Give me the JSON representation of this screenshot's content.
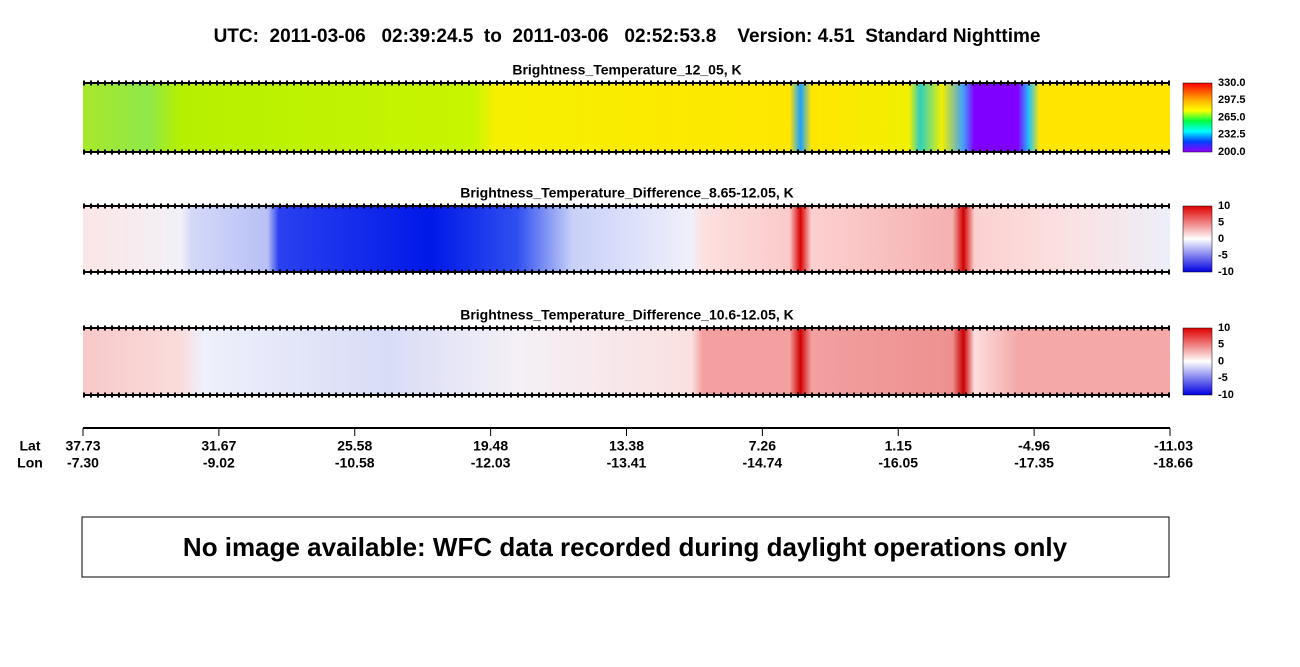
{
  "header": {
    "title": "UTC:  2011-03-06   02:39:24.5  to  2011-03-06   02:52:53.8    Version: 4.51  Standard Nighttime"
  },
  "panels": [
    {
      "title": "Brightness_Temperature_12_05, K",
      "colorbar_labels": [
        "330.0",
        "297.5",
        "265.0",
        "232.5",
        "200.0"
      ]
    },
    {
      "title": "Brightness_Temperature_Difference_8.65-12.05, K",
      "colorbar_labels": [
        "10",
        "5",
        "0",
        "-5",
        "-10"
      ]
    },
    {
      "title": "Brightness_Temperature_Difference_10.6-12.05, K",
      "colorbar_labels": [
        "10",
        "5",
        "0",
        "-5",
        "-10"
      ]
    }
  ],
  "axis": {
    "lat_label": "Lat",
    "lon_label": "Lon",
    "lat": [
      "37.73",
      "31.67",
      "25.58",
      "19.48",
      "13.38",
      "7.26",
      "1.15",
      "-4.96",
      "-11.03"
    ],
    "lon": [
      "-7.30",
      "-9.02",
      "-10.58",
      "-12.03",
      "-13.41",
      "-14.74",
      "-16.05",
      "-17.35",
      "-18.66"
    ]
  },
  "message": "No image available: WFC data recorded during daylight operations only"
}
